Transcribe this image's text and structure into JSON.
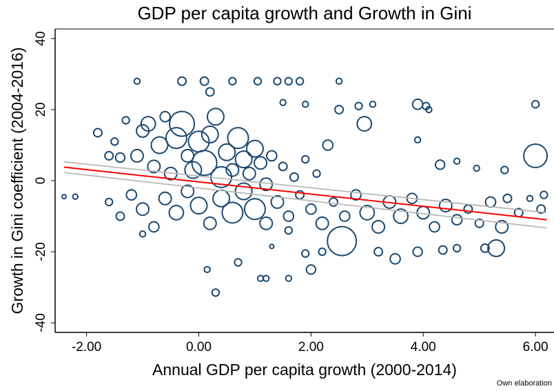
{
  "chart_data": {
    "type": "scatter",
    "title": "GDP per capita growth and Growth in Gini",
    "x_label": "Annual GDP per capita growth (2000-2014)",
    "y_label": "Growth in Gini coefficient (2004-2016)",
    "note": "Own elaboration",
    "color": "#1a476f",
    "xlim": [
      -2.56,
      6.33
    ],
    "ylim": [
      -42.7,
      42.7
    ],
    "xticks": [
      {
        "value": -2,
        "label": "-2.00"
      },
      {
        "value": 0,
        "label": "0.00"
      },
      {
        "value": 2,
        "label": "2.00"
      },
      {
        "value": 4,
        "label": "4.00"
      },
      {
        "value": 6,
        "label": "6.00"
      }
    ],
    "yticks": [
      -40,
      -20,
      0,
      20,
      40
    ],
    "x": [
      -2.4,
      -2.2,
      -1.8,
      -1.6,
      -1.5,
      -1.4,
      -1.3,
      -1.1,
      -1,
      -0.9,
      -0.8,
      -0.7,
      -0.6,
      -0.5,
      -0.4,
      -0.3,
      -0.2,
      -0.1,
      0,
      0.1,
      0.2,
      0.3,
      0.4,
      0.5,
      0.6,
      0.7,
      0.8,
      0.9,
      1,
      1.1,
      1.2,
      1.3,
      1.5,
      1.7,
      1.9,
      2.1,
      2.3,
      -1.1,
      -0.3,
      0.1,
      0.2,
      0.6,
      1.05,
      1.4,
      1.6,
      1.8,
      2.5,
      1.5,
      1.9,
      2.5,
      2.85,
      2.95,
      3.1,
      3.9,
      4.05,
      4.1,
      3.9,
      6.0,
      6.0,
      5.45,
      4.95,
      4.3,
      4.6,
      -1.6,
      -1.4,
      -1.2,
      -1.0,
      -0.8,
      -0.6,
      -0.4,
      -0.2,
      0,
      0.2,
      0.4,
      0.6,
      0.8,
      1.0,
      1.2,
      1.4,
      1.6,
      1.8,
      2.0,
      2.2,
      2.4,
      2.6,
      2.55,
      2.8,
      3.0,
      3.2,
      3.4,
      3.6,
      3.8,
      4.0,
      4.2,
      4.4,
      4.6,
      4.8,
      5.0,
      5.2,
      5.4,
      5.5,
      5.7,
      5.9,
      6.1,
      6.15,
      5.1,
      5.3,
      4.6,
      4.35,
      3.9,
      3.5,
      3.2,
      2.2,
      1.9,
      2.0,
      1.6,
      1.2,
      1.1,
      0.3,
      0.7,
      0.15,
      -1.0,
      1.3,
      1.6
    ],
    "y": [
      -4.5,
      -4.5,
      13.5,
      7,
      11,
      6.5,
      17,
      7,
      14,
      16,
      4,
      10,
      18,
      2,
      12,
      16,
      7,
      3,
      11,
      5,
      13,
      18,
      1,
      8,
      3,
      12,
      6,
      2,
      9,
      5,
      -1,
      7,
      4,
      1,
      6,
      2,
      10,
      28,
      28,
      28,
      25,
      28,
      28,
      28,
      28,
      28,
      28,
      22,
      21.5,
      20,
      21,
      16,
      21.5,
      21.5,
      21,
      20,
      11.5,
      21.5,
      7,
      3,
      3.5,
      4.5,
      5.5,
      -6,
      -10,
      -4,
      -8,
      -13,
      -5,
      -9,
      -3,
      -7,
      -12,
      -5,
      -9,
      -3,
      -8,
      -12,
      -6,
      -10,
      -4,
      -8,
      -12,
      -6,
      -10,
      -17,
      -4,
      -9,
      -13,
      -6,
      -10,
      -5,
      -9,
      -13,
      -7,
      -11,
      -8,
      -12,
      -6,
      -13,
      -5,
      -9,
      -5,
      -8,
      -4,
      -19,
      -19,
      -19,
      -19.5,
      -20,
      -22,
      -20,
      -20,
      -20.5,
      -25,
      -27.5,
      -27.5,
      -27.5,
      -31.5,
      -23,
      -25,
      -15,
      -18.5,
      -14
    ],
    "sizes": [
      1,
      1.5,
      4,
      4,
      3,
      5,
      3,
      9,
      9,
      12,
      9,
      16,
      6,
      9,
      25,
      36,
      9,
      16,
      25,
      36,
      16,
      16,
      25,
      16,
      9,
      25,
      16,
      9,
      16,
      9,
      9,
      6,
      4,
      4,
      3,
      3,
      6,
      2,
      4,
      4,
      4,
      3,
      3,
      3,
      3,
      3,
      2,
      2,
      2,
      4,
      3,
      12,
      2,
      6,
      3,
      2,
      2,
      3,
      32,
      3,
      2,
      5,
      2,
      3,
      4,
      6,
      9,
      6,
      9,
      12,
      9,
      16,
      9,
      16,
      25,
      16,
      25,
      9,
      9,
      6,
      4,
      6,
      9,
      4,
      6,
      49,
      6,
      12,
      9,
      9,
      12,
      6,
      9,
      6,
      9,
      6,
      4,
      4,
      6,
      9,
      4,
      4,
      2,
      4,
      3,
      4,
      16,
      3,
      4,
      5,
      6,
      4,
      3,
      3,
      5,
      2,
      2,
      2,
      3,
      3,
      2,
      2,
      1,
      3
    ],
    "fit": {
      "x": [
        -2.4,
        6.2
      ],
      "y": [
        3.8,
        -11
      ],
      "color": "#ff0000"
    },
    "ci_upper": {
      "x": [
        -2.4,
        6.2
      ],
      "y": [
        5.3,
        -9
      ],
      "color": "#b8b8b8"
    },
    "ci_lower": {
      "x": [
        -2.4,
        6.2
      ],
      "y": [
        2.3,
        -13.3
      ],
      "color": "#b8b8b8"
    }
  }
}
